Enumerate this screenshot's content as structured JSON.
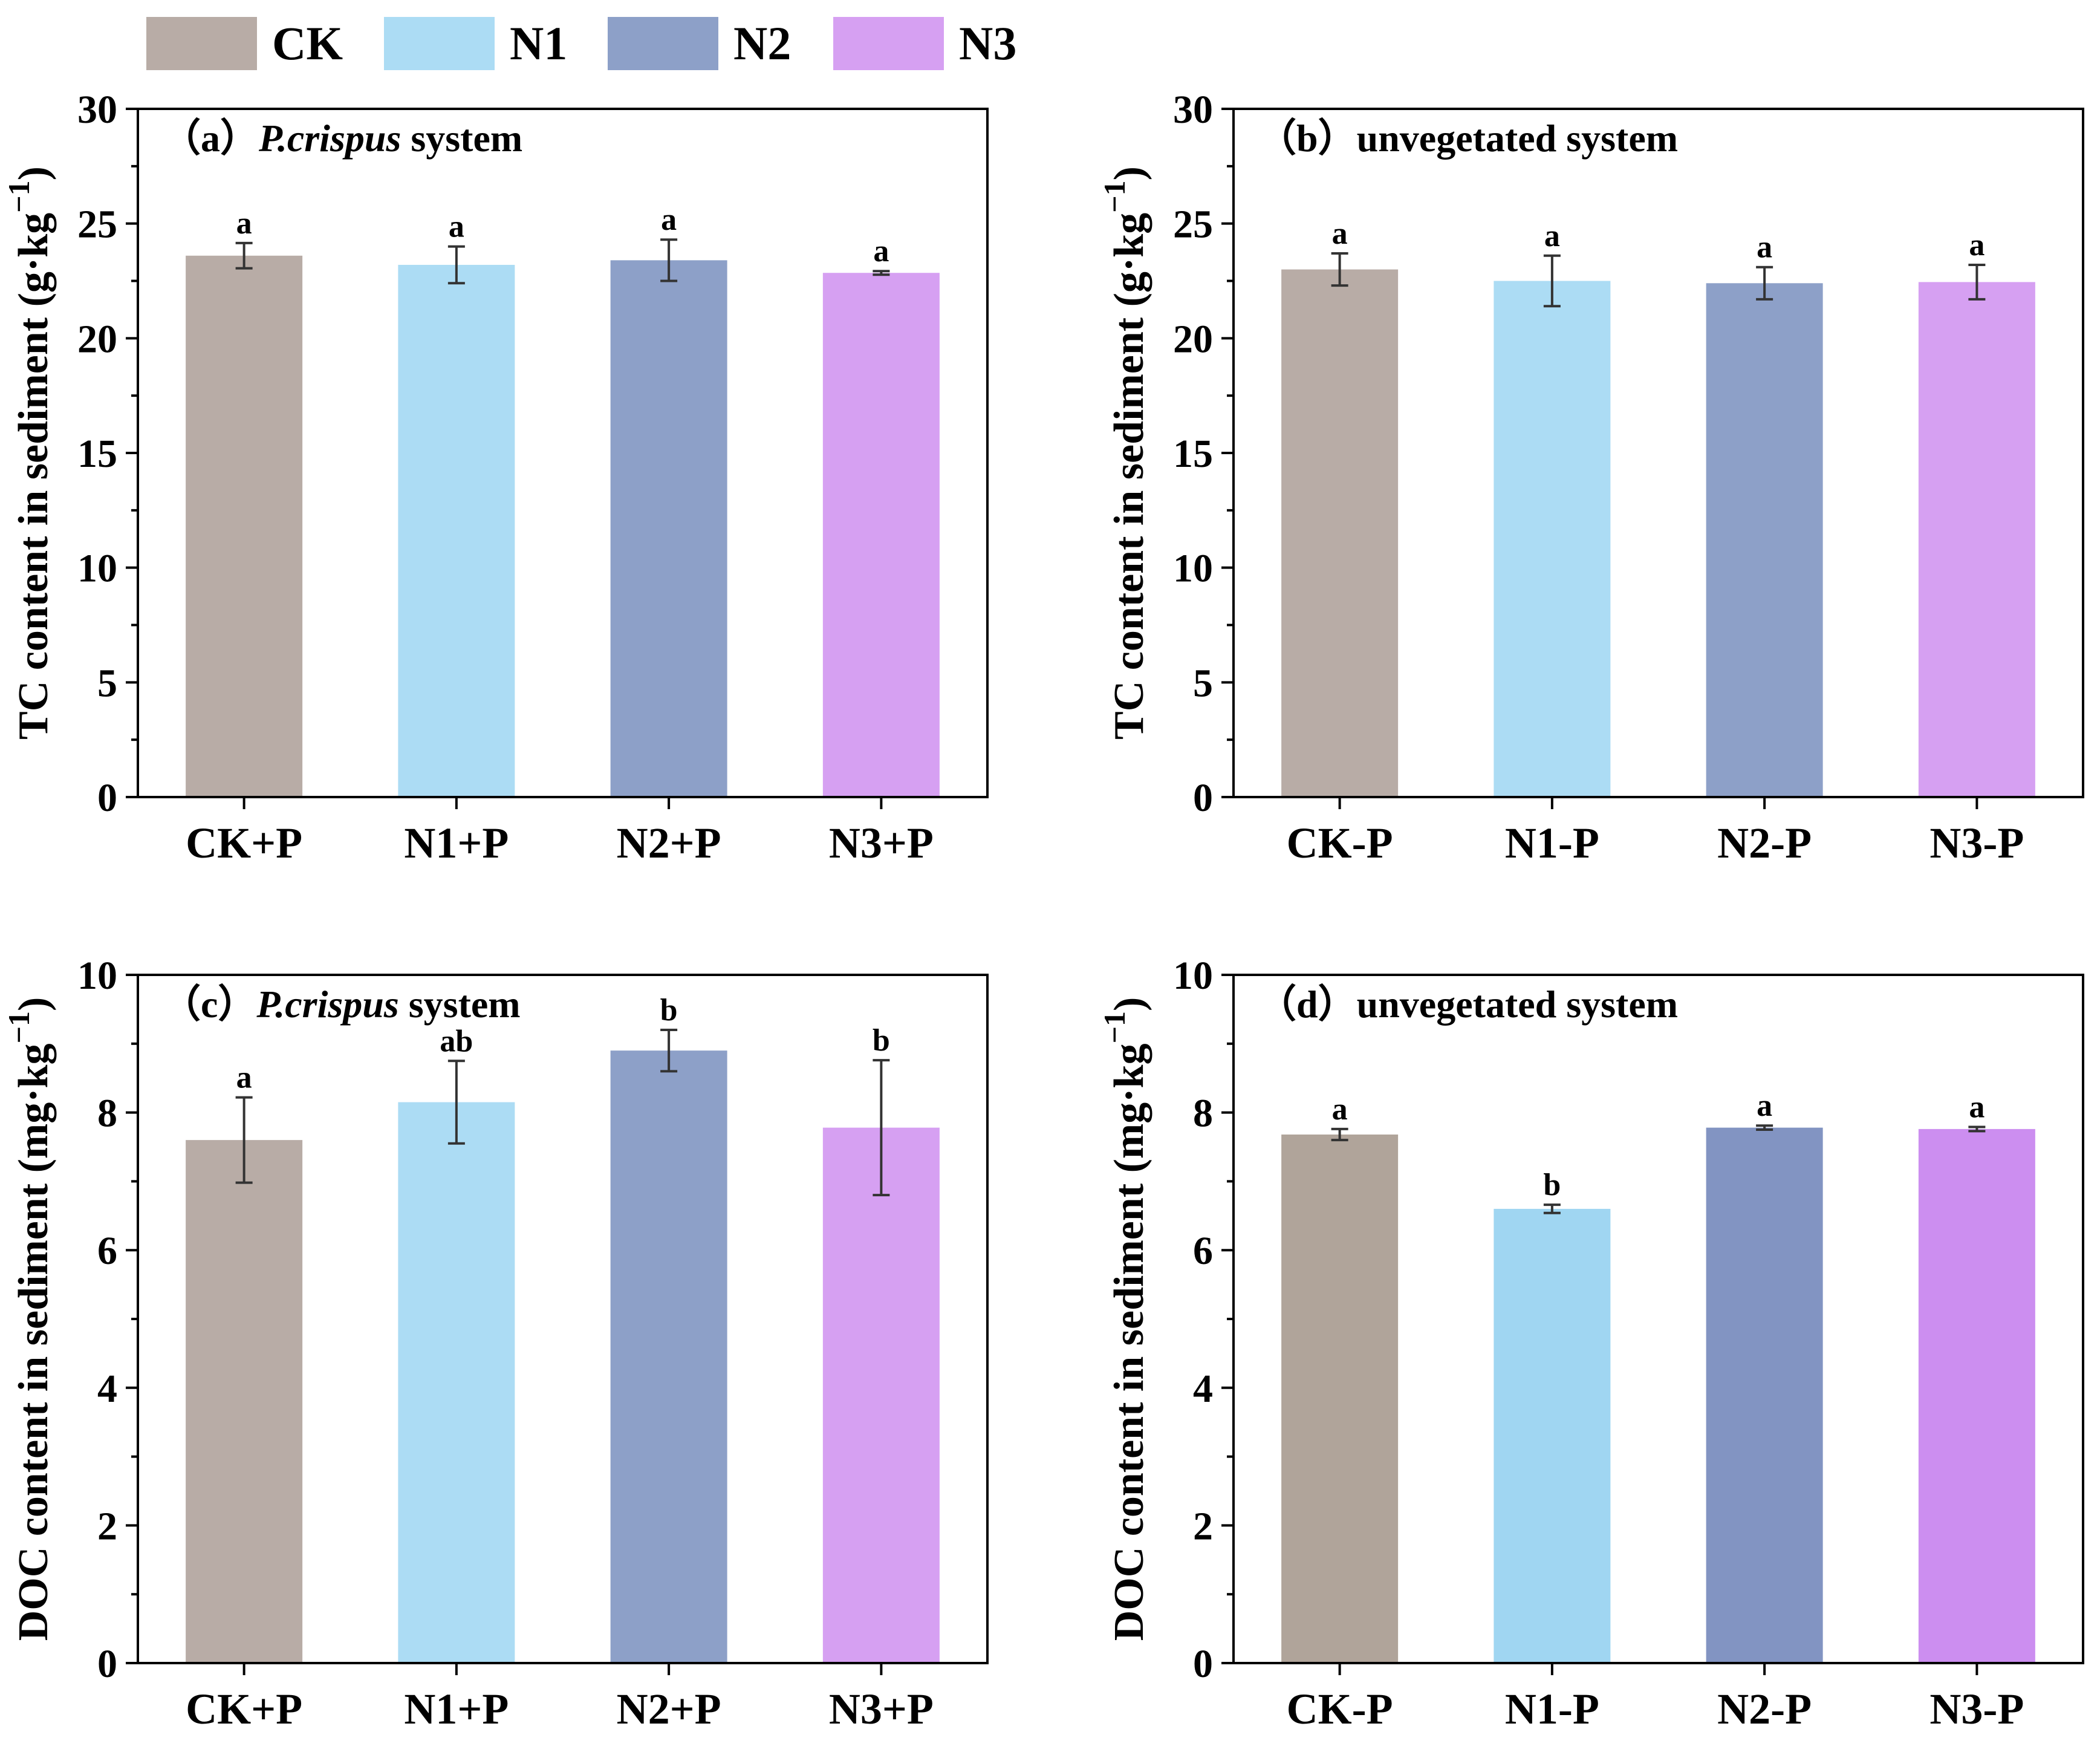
{
  "legend": [
    {
      "name": "CK",
      "color": "#b8aca6"
    },
    {
      "name": "N1",
      "color": "#acdcf4"
    },
    {
      "name": "N2",
      "color": "#8da0c8"
    },
    {
      "name": "N3",
      "color": "#d6a0f2"
    }
  ],
  "chart_data": [
    {
      "type": "bar",
      "panel_label": "（a）",
      "title_italic": "P.crispus",
      "title_rest": " system",
      "ylabel_main": "TC content in sediment (g·kg",
      "ylabel_sup": "−1",
      "ylabel_close": ")",
      "ylim": [
        0,
        30
      ],
      "yticks": [
        "0",
        "5",
        "10",
        "15",
        "20",
        "25",
        "30"
      ],
      "categories": [
        "CK+P",
        "N1+P",
        "N2+P",
        "N3+P"
      ],
      "values": [
        23.6,
        23.2,
        23.4,
        22.85
      ],
      "errors": [
        0.55,
        0.8,
        0.9,
        0.08
      ],
      "letters": [
        "a",
        "a",
        "a",
        "a"
      ],
      "colors": [
        "#b8aca6",
        "#acdcf4",
        "#8da0c8",
        "#d6a0f2"
      ]
    },
    {
      "type": "bar",
      "panel_label": "（b）",
      "title_italic": "",
      "title_rest": "unvegetated system",
      "ylabel_main": "TC content in sediment (g·kg",
      "ylabel_sup": "−1",
      "ylabel_close": ")",
      "ylim": [
        0,
        30
      ],
      "yticks": [
        "0",
        "5",
        "10",
        "15",
        "20",
        "25",
        "30"
      ],
      "categories": [
        "CK-P",
        "N1-P",
        "N2-P",
        "N3-P"
      ],
      "values": [
        23.0,
        22.5,
        22.4,
        22.45
      ],
      "errors": [
        0.7,
        1.1,
        0.7,
        0.75
      ],
      "letters": [
        "a",
        "a",
        "a",
        "a"
      ],
      "colors": [
        "#b8aca6",
        "#acdcf4",
        "#8da0c8",
        "#d6a0f2"
      ]
    },
    {
      "type": "bar",
      "panel_label": "（c）",
      "title_italic": "P.crispus",
      "title_rest": " system",
      "ylabel_main": "DOC content in sediment (mg·kg",
      "ylabel_sup": "−1",
      "ylabel_close": ")",
      "ylim": [
        0,
        10
      ],
      "yticks": [
        "0",
        "2",
        "4",
        "6",
        "8",
        "10"
      ],
      "categories": [
        "CK+P",
        "N1+P",
        "N2+P",
        "N3+P"
      ],
      "values": [
        7.6,
        8.15,
        8.9,
        7.78
      ],
      "errors": [
        0.62,
        0.6,
        0.3,
        0.98
      ],
      "letters": [
        "a",
        "ab",
        "b",
        "b"
      ],
      "colors": [
        "#b8aca6",
        "#acdcf4",
        "#8da0c8",
        "#d6a0f2"
      ]
    },
    {
      "type": "bar",
      "panel_label": "（d）",
      "title_italic": "",
      "title_rest": "unvegetated system",
      "ylabel_main": "DOC content in sediment (mg·kg",
      "ylabel_sup": "−1",
      "ylabel_close": ")",
      "ylim": [
        0,
        10
      ],
      "yticks": [
        "0",
        "2",
        "4",
        "6",
        "8",
        "10"
      ],
      "categories": [
        "CK-P",
        "N1-P",
        "N2-P",
        "N3-P"
      ],
      "values": [
        7.68,
        6.6,
        7.78,
        7.76
      ],
      "errors": [
        0.08,
        0.06,
        0.03,
        0.03
      ],
      "letters": [
        "a",
        "b",
        "a",
        "a"
      ],
      "colors": [
        "#b0a49a",
        "#a0d6f2",
        "#8294c2",
        "#cc8ef0"
      ]
    }
  ]
}
